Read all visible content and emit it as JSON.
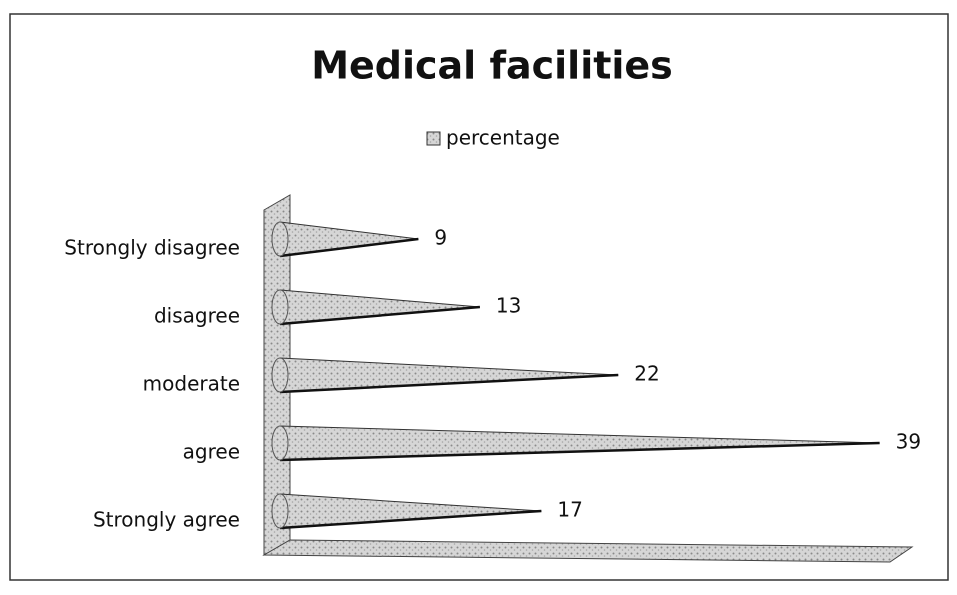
{
  "chart_data": {
    "type": "bar",
    "horizontal": true,
    "shape": "cone",
    "title": "Medical facilities",
    "categories": [
      "Strongly disagree",
      "disagree",
      "moderate",
      "agree",
      "Strongly agree"
    ],
    "series": [
      {
        "name": "percentage",
        "color": "#c8c8c8",
        "values": [
          9,
          13,
          22,
          39,
          17
        ]
      }
    ],
    "xlim": [
      0,
      40
    ],
    "legend": "top"
  }
}
